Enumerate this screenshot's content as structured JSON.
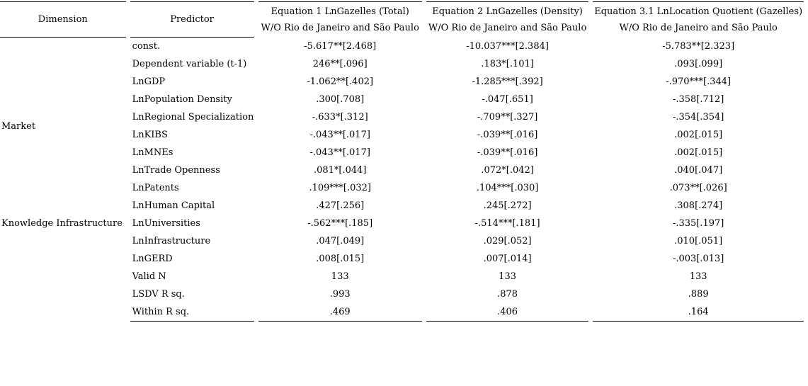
{
  "table": {
    "header": {
      "dimension": "Dimension",
      "predictor": "Predictor",
      "equations": [
        {
          "line1": "Equation 1 LnGazelles (Total)",
          "line2": "W/O Rio de Janeiro and São Paulo"
        },
        {
          "line1": "Equation 2 LnGazelles (Density)",
          "line2": "W/O Rio de Janeiro and São Paulo"
        },
        {
          "line1": "Equation 3.1 LnLocation Quotient (Gazelles)",
          "line2": "W/O Rio de Janeiro and São Paulo"
        }
      ]
    },
    "dimension_groups": [
      {
        "label": "",
        "rows": 2
      },
      {
        "label": "Market",
        "rows": 6
      },
      {
        "label": "Knowledge Infrastructure",
        "rows": 5
      },
      {
        "label": "",
        "rows": 3
      }
    ],
    "rows": [
      {
        "predictor": "const.",
        "eq1": "-5.617**[2.468]",
        "eq2": "-10.037***[2.384]",
        "eq3": "-5.783**[2.323]"
      },
      {
        "predictor": "Dependent variable (t-1)",
        "eq1": "246**[.096]",
        "eq2": ".183*[.101]",
        "eq3": ".093[.099]"
      },
      {
        "predictor": "LnGDP",
        "eq1": "-1.062**[.402]",
        "eq2": "-1.285***[.392]",
        "eq3": "-.970***[.344]"
      },
      {
        "predictor": "LnPopulation Density",
        "eq1": ".300[.708]",
        "eq2": "-.047[.651]",
        "eq3": "-.358[.712]"
      },
      {
        "predictor": "LnRegional Specialization",
        "eq1": "-.633*[.312]",
        "eq2": "-.709**[.327]",
        "eq3": "-.354[.354]"
      },
      {
        "predictor": "LnKIBS",
        "eq1": "-.043**[.017]",
        "eq2": "-.039**[.016]",
        "eq3": ".002[.015]"
      },
      {
        "predictor": "LnMNEs",
        "eq1": "-.043**[.017]",
        "eq2": "-.039**[.016]",
        "eq3": ".002[.015]"
      },
      {
        "predictor": "LnTrade Openness",
        "eq1": ".081*[.044]",
        "eq2": ".072*[.042]",
        "eq3": ".040[.047]"
      },
      {
        "predictor": "LnPatents",
        "eq1": ".109***[.032]",
        "eq2": ".104***[.030]",
        "eq3": ".073**[.026]"
      },
      {
        "predictor": "LnHuman Capital",
        "eq1": ".427[.256]",
        "eq2": ".245[.272]",
        "eq3": ".308[.274]"
      },
      {
        "predictor": "LnUniversities",
        "eq1": "-.562***[.185]",
        "eq2": "-.514***[.181]",
        "eq3": "-.335[.197]"
      },
      {
        "predictor": "LnInfrastructure",
        "eq1": ".047[.049]",
        "eq2": ".029[.052]",
        "eq3": ".010[.051]"
      },
      {
        "predictor": "LnGERD",
        "eq1": ".008[.015]",
        "eq2": ".007[.014]",
        "eq3": "-.003[.013]"
      },
      {
        "predictor": "Valid N",
        "eq1": "133",
        "eq2": "133",
        "eq3": "133"
      },
      {
        "predictor": "LSDV R sq.",
        "eq1": ".993",
        "eq2": ".878",
        "eq3": ".889"
      },
      {
        "predictor": "Within R sq.",
        "eq1": ".469",
        "eq2": ".406",
        "eq3": ".164"
      }
    ]
  }
}
